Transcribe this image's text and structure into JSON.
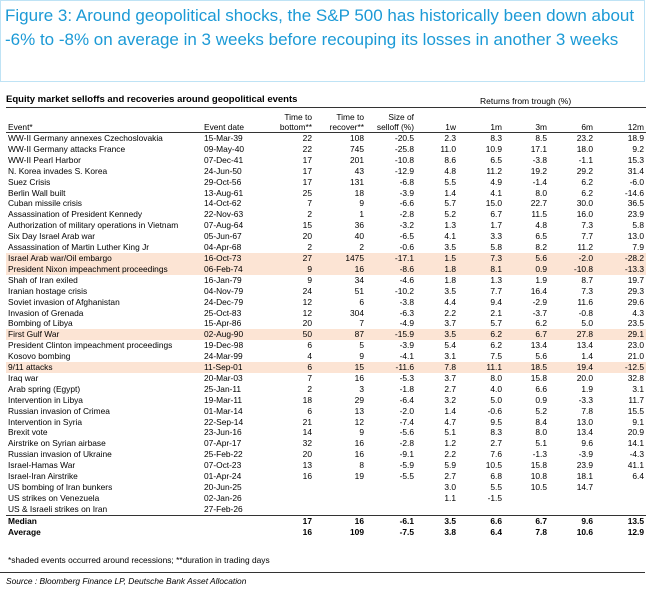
{
  "header": {
    "title": "Figure 3: Around geopolitical shocks, the S&P 500 has historically been down about -6% to -8% on average in 3 weeks before recouping its losses in another 3 weeks"
  },
  "table": {
    "title": "Equity market selloffs and recoveries around geopolitical events",
    "group_header": "Returns from trough (%)",
    "columns": [
      "Event*",
      "Event date",
      "Time to bottom**",
      "Time to recover**",
      "Size of selloff (%)",
      "1w",
      "1m",
      "3m",
      "6m",
      "12m"
    ],
    "shaded_rows": [
      11,
      12,
      18,
      21
    ],
    "rows": [
      [
        "WW-II Germany annexes Czechoslovakia",
        "15-Mar-39",
        "22",
        "108",
        "-20.5",
        "2.3",
        "8.3",
        "8.5",
        "23.2",
        "18.9"
      ],
      [
        "WW-II Germany attacks France",
        "09-May-40",
        "22",
        "745",
        "-25.8",
        "11.0",
        "10.9",
        "17.1",
        "18.0",
        "9.2"
      ],
      [
        "WW-II Pearl Harbor",
        "07-Dec-41",
        "17",
        "201",
        "-10.8",
        "8.6",
        "6.5",
        "-3.8",
        "-1.1",
        "15.3"
      ],
      [
        "N. Korea invades S. Korea",
        "24-Jun-50",
        "17",
        "43",
        "-12.9",
        "4.8",
        "11.2",
        "19.2",
        "29.2",
        "31.4"
      ],
      [
        "Suez Crisis",
        "29-Oct-56",
        "17",
        "131",
        "-6.8",
        "5.5",
        "4.9",
        "-1.4",
        "6.2",
        "-6.0"
      ],
      [
        "Berlin Wall built",
        "13-Aug-61",
        "25",
        "18",
        "-3.9",
        "1.4",
        "4.1",
        "8.0",
        "6.2",
        "-14.6"
      ],
      [
        "Cuban missile crisis",
        "14-Oct-62",
        "7",
        "9",
        "-6.6",
        "5.7",
        "15.0",
        "22.7",
        "30.0",
        "36.5"
      ],
      [
        "Assassination of President Kennedy",
        "22-Nov-63",
        "2",
        "1",
        "-2.8",
        "5.2",
        "6.7",
        "11.5",
        "16.0",
        "23.9"
      ],
      [
        "Authorization of military operations in Vietnam",
        "07-Aug-64",
        "15",
        "36",
        "-3.2",
        "1.3",
        "1.7",
        "4.8",
        "7.3",
        "5.8"
      ],
      [
        "Six Day Israel Arab war",
        "05-Jun-67",
        "20",
        "40",
        "-6.5",
        "4.1",
        "3.3",
        "6.5",
        "7.7",
        "13.0"
      ],
      [
        "Assassination of Martin Luther King Jr",
        "04-Apr-68",
        "2",
        "2",
        "-0.6",
        "3.5",
        "5.8",
        "8.2",
        "11.2",
        "7.9"
      ],
      [
        "Israel Arab war/Oil embargo",
        "16-Oct-73",
        "27",
        "1475",
        "-17.1",
        "1.5",
        "7.3",
        "5.6",
        "-2.0",
        "-28.2"
      ],
      [
        "President Nixon impeachment proceedings",
        "06-Feb-74",
        "9",
        "16",
        "-8.6",
        "1.8",
        "8.1",
        "0.9",
        "-10.8",
        "-13.3"
      ],
      [
        "Shah of Iran exiled",
        "16-Jan-79",
        "9",
        "34",
        "-4.6",
        "1.8",
        "1.3",
        "1.9",
        "8.7",
        "19.7"
      ],
      [
        "Iranian hostage crisis",
        "04-Nov-79",
        "24",
        "51",
        "-10.2",
        "3.5",
        "7.7",
        "16.4",
        "7.3",
        "29.3"
      ],
      [
        "Soviet invasion of Afghanistan",
        "24-Dec-79",
        "12",
        "6",
        "-3.8",
        "4.4",
        "9.4",
        "-2.9",
        "11.6",
        "29.6"
      ],
      [
        "Invasion of Grenada",
        "25-Oct-83",
        "12",
        "304",
        "-6.3",
        "2.2",
        "2.1",
        "-3.7",
        "-0.8",
        "4.3"
      ],
      [
        "Bombing of Libya",
        "15-Apr-86",
        "20",
        "7",
        "-4.9",
        "3.7",
        "5.7",
        "6.2",
        "5.0",
        "23.5"
      ],
      [
        "First Gulf War",
        "02-Aug-90",
        "50",
        "87",
        "-15.9",
        "3.5",
        "6.2",
        "6.7",
        "27.8",
        "29.1"
      ],
      [
        "President Clinton impeachment proceedings",
        "19-Dec-98",
        "6",
        "5",
        "-3.9",
        "5.4",
        "6.2",
        "13.4",
        "13.4",
        "23.0"
      ],
      [
        "Kosovo bombing",
        "24-Mar-99",
        "4",
        "9",
        "-4.1",
        "3.1",
        "7.5",
        "5.6",
        "1.4",
        "21.0"
      ],
      [
        "9/11 attacks",
        "11-Sep-01",
        "6",
        "15",
        "-11.6",
        "7.8",
        "11.1",
        "18.5",
        "19.4",
        "-12.5"
      ],
      [
        "Iraq war",
        "20-Mar-03",
        "7",
        "16",
        "-5.3",
        "3.7",
        "8.0",
        "15.8",
        "20.0",
        "32.8"
      ],
      [
        "Arab spring (Egypt)",
        "25-Jan-11",
        "2",
        "3",
        "-1.8",
        "2.7",
        "4.0",
        "6.6",
        "1.9",
        "3.1"
      ],
      [
        "Intervention in Libya",
        "19-Mar-11",
        "18",
        "29",
        "-6.4",
        "3.2",
        "5.0",
        "0.9",
        "-3.3",
        "11.7"
      ],
      [
        "Russian invasion of Crimea",
        "01-Mar-14",
        "6",
        "13",
        "-2.0",
        "1.4",
        "-0.6",
        "5.2",
        "7.8",
        "15.5"
      ],
      [
        "Intervention in Syria",
        "22-Sep-14",
        "21",
        "12",
        "-7.4",
        "4.7",
        "9.5",
        "8.4",
        "13.0",
        "9.1"
      ],
      [
        "Brexit vote",
        "23-Jun-16",
        "14",
        "9",
        "-5.6",
        "5.1",
        "8.3",
        "8.0",
        "13.4",
        "20.9"
      ],
      [
        "Airstrike on Syrian airbase",
        "07-Apr-17",
        "32",
        "16",
        "-2.8",
        "1.2",
        "2.7",
        "5.1",
        "9.6",
        "14.1"
      ],
      [
        "Russian invasion of Ukraine",
        "25-Feb-22",
        "20",
        "16",
        "-9.1",
        "2.2",
        "7.6",
        "-1.3",
        "-3.9",
        "-4.3"
      ],
      [
        "Israel-Hamas War",
        "07-Oct-23",
        "13",
        "8",
        "-5.9",
        "5.9",
        "10.5",
        "15.8",
        "23.9",
        "41.1"
      ],
      [
        "Israel-Iran Airstrike",
        "01-Apr-24",
        "16",
        "19",
        "-5.5",
        "2.7",
        "6.8",
        "10.8",
        "18.1",
        "6.4"
      ],
      [
        "US bombing of Iran bunkers",
        "20-Jun-25",
        null,
        null,
        null,
        "3.0",
        "5.5",
        "10.5",
        "14.7",
        null
      ],
      [
        "US strikes on Venezuela",
        "02-Jan-26",
        null,
        null,
        null,
        "1.1",
        "-1.5",
        null,
        null,
        null
      ],
      [
        "US & Israeli strikes on Iran",
        "27-Feb-26",
        null,
        null,
        null,
        null,
        null,
        null,
        null,
        null
      ]
    ],
    "summary": [
      [
        "Median",
        null,
        "17",
        "16",
        "-6.1",
        "3.5",
        "6.6",
        "6.7",
        "9.6",
        "13.5"
      ],
      [
        "Average",
        null,
        "16",
        "109",
        "-7.5",
        "3.8",
        "6.4",
        "7.8",
        "10.6",
        "12.9"
      ]
    ]
  },
  "footnote": "*shaded events occurred around recessions; **duration in trading days",
  "source": "Source : Bloomberg Finance LP, Deutsche Bank Asset Allocation"
}
